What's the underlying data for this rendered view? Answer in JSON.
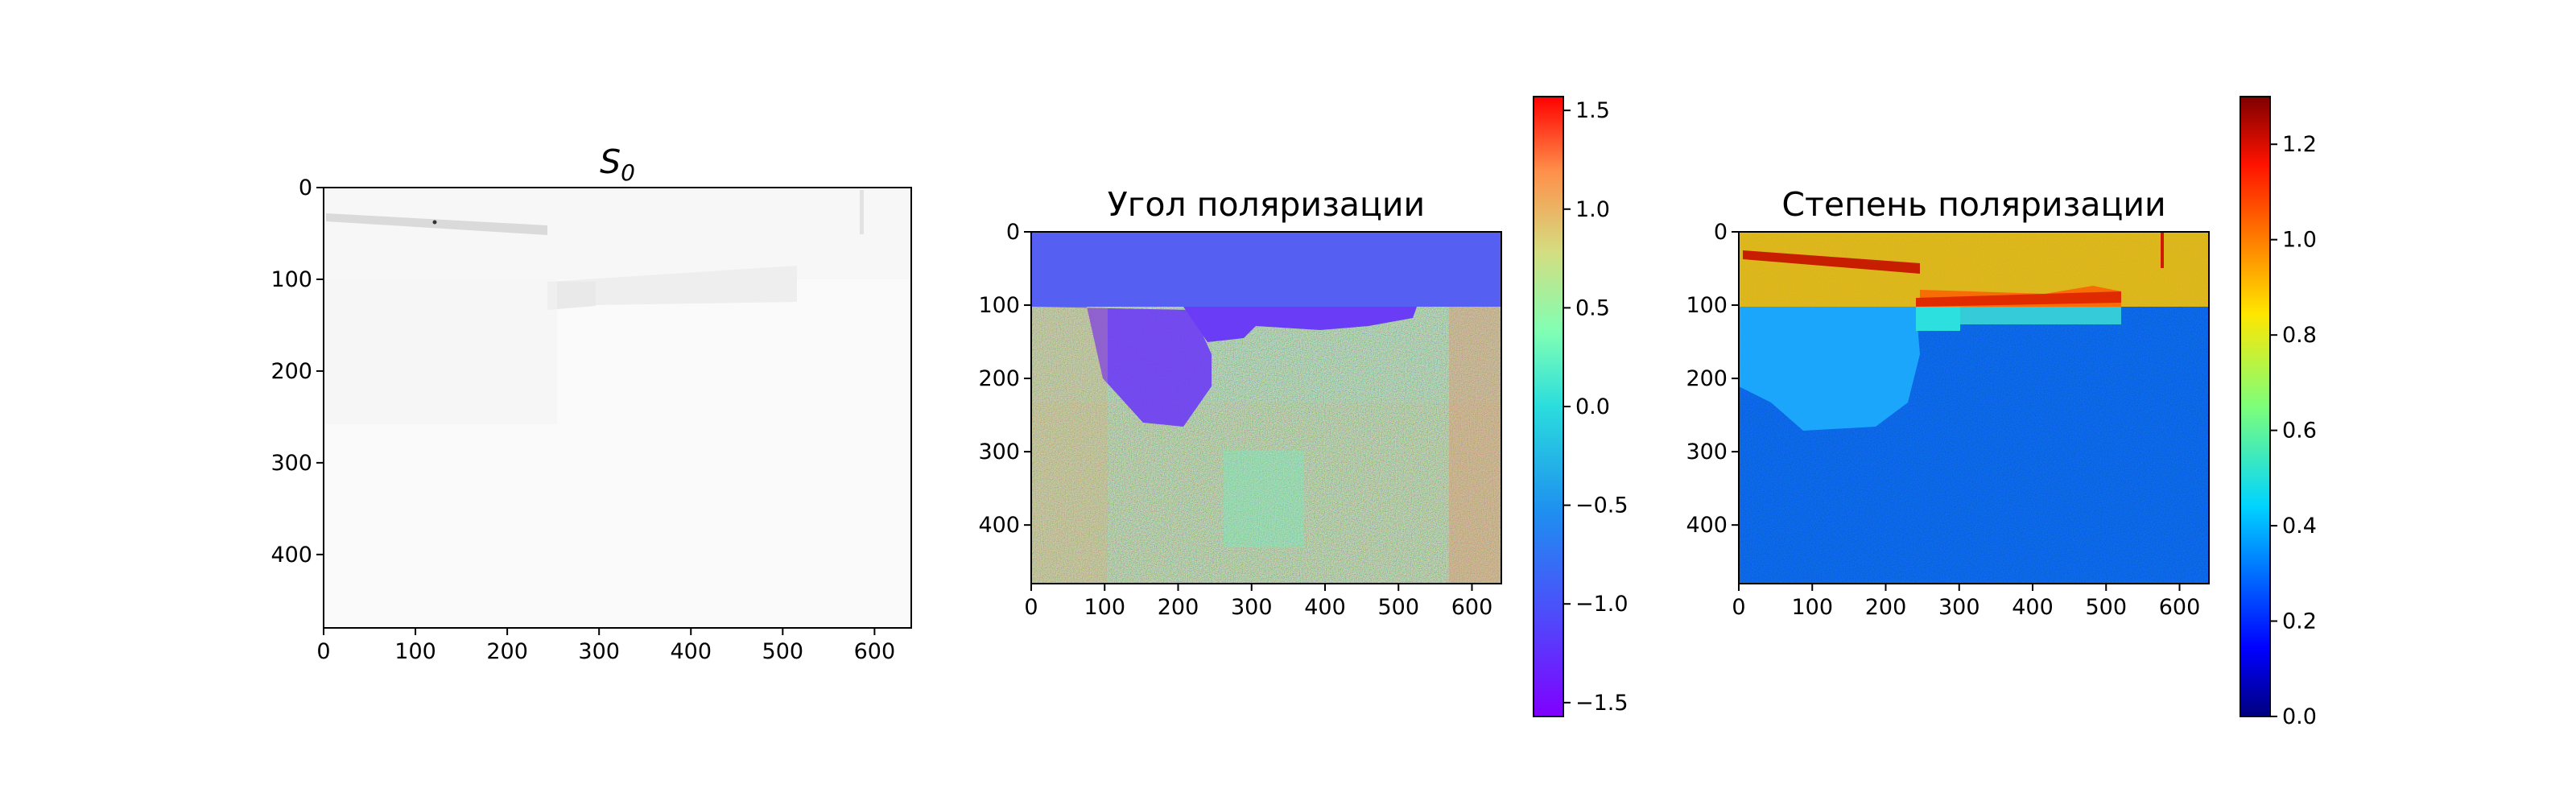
{
  "chart_data": [
    {
      "type": "heatmap",
      "title": "S",
      "title_subscript": "0",
      "xlim": [
        0,
        640
      ],
      "ylim": [
        480,
        0
      ],
      "xticks": [
        "0",
        "100",
        "200",
        "300",
        "400",
        "500",
        "600"
      ],
      "yticks": [
        "0",
        "100",
        "200",
        "300",
        "400"
      ],
      "colormap": "gray",
      "colorbar": false
    },
    {
      "type": "heatmap",
      "title": "Угол поляризации",
      "xlim": [
        0,
        640
      ],
      "ylim": [
        480,
        0
      ],
      "xticks": [
        "0",
        "100",
        "200",
        "300",
        "400",
        "500",
        "600"
      ],
      "yticks": [
        "0",
        "100",
        "200",
        "300",
        "400"
      ],
      "colormap": "rainbow",
      "colorbar": true,
      "colorbar_range": [
        -1.57,
        1.57
      ],
      "colorbar_ticks": [
        "−1.5",
        "−1.0",
        "−0.5",
        "0.0",
        "0.5",
        "1.0",
        "1.5"
      ],
      "colorbar_tick_values": [
        -1.5,
        -1.0,
        -0.5,
        0.0,
        0.5,
        1.0,
        1.5
      ]
    },
    {
      "type": "heatmap",
      "title": "Степень поляризации",
      "xlim": [
        0,
        640
      ],
      "ylim": [
        480,
        0
      ],
      "xticks": [
        "0",
        "100",
        "200",
        "300",
        "400",
        "500",
        "600"
      ],
      "yticks": [
        "0",
        "100",
        "200",
        "300",
        "400"
      ],
      "colormap": "jet",
      "colorbar": true,
      "colorbar_range": [
        0.0,
        1.3
      ],
      "colorbar_ticks": [
        "0.0",
        "0.2",
        "0.4",
        "0.6",
        "0.8",
        "1.0",
        "1.2"
      ],
      "colorbar_tick_values": [
        0.0,
        0.2,
        0.4,
        0.6,
        0.8,
        1.0,
        1.2
      ]
    }
  ]
}
